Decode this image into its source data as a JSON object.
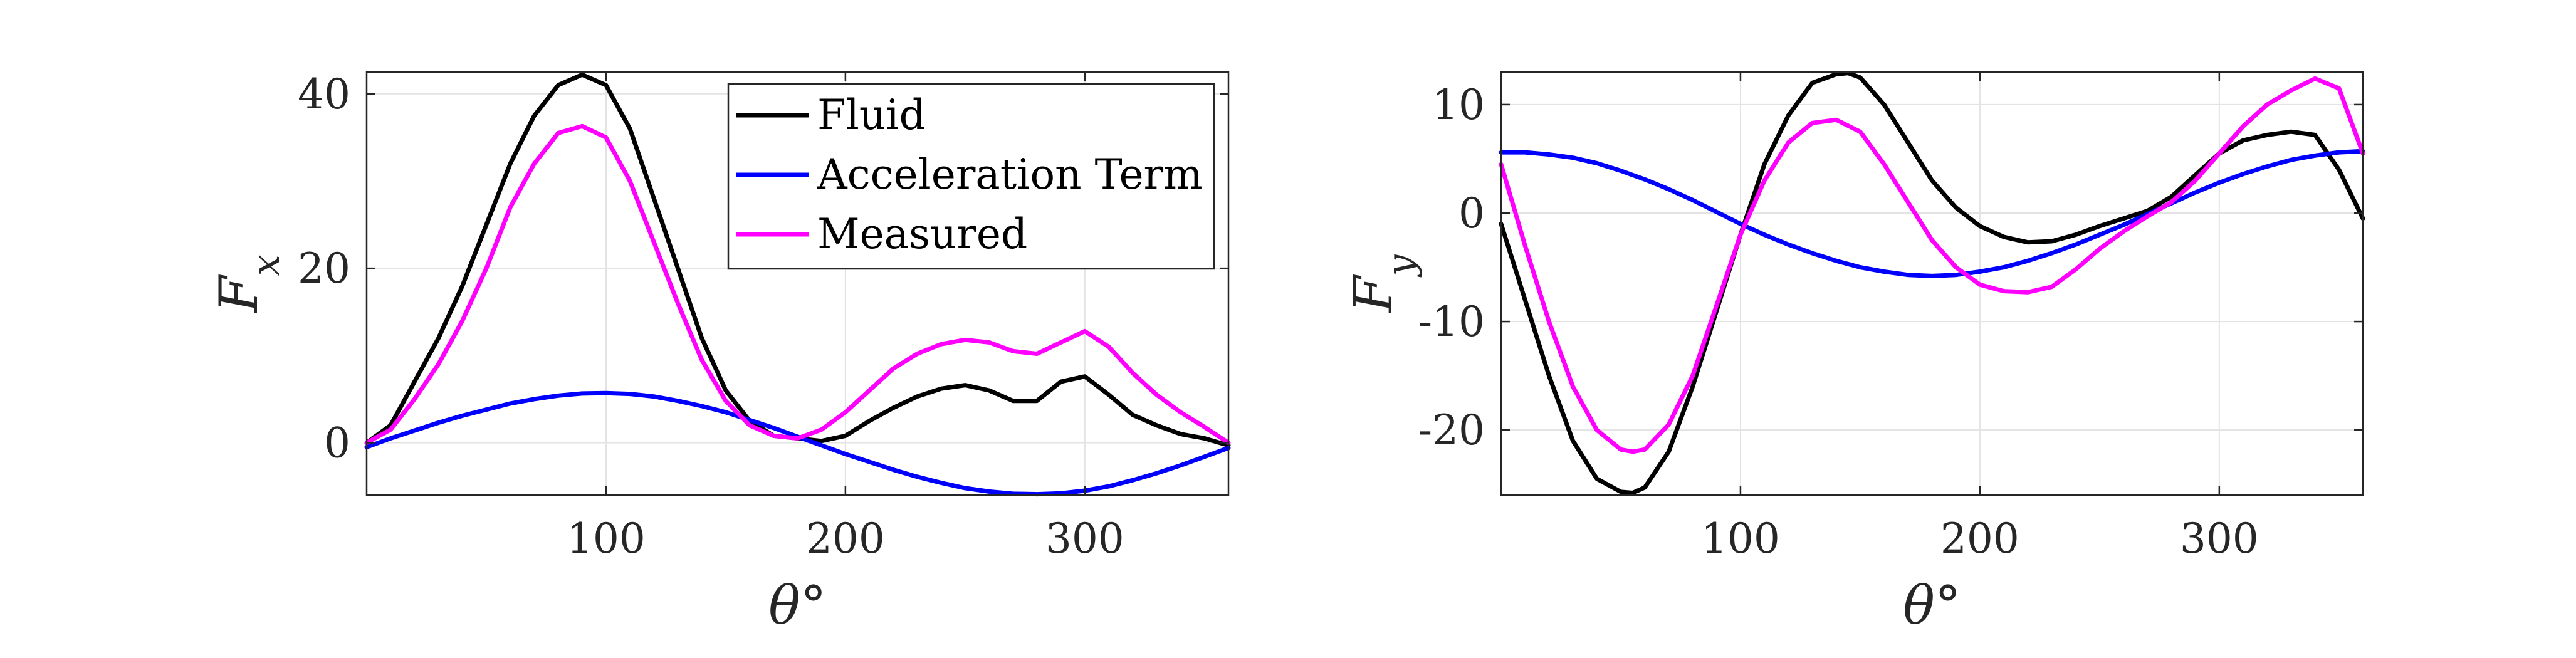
{
  "chart_data": [
    {
      "type": "line",
      "title": "",
      "xlabel": "θ°",
      "ylabel": "Fx",
      "xlim": [
        0,
        360
      ],
      "ylim": [
        -6,
        42.5
      ],
      "xticks": [
        100,
        200,
        300
      ],
      "yticks": [
        0,
        20,
        40
      ],
      "ytick_labels": [
        "0",
        "20",
        "40"
      ],
      "grid": true,
      "legend_position": "top-right",
      "series": [
        {
          "name": "Fluid",
          "color": "#000000",
          "x": [
            0,
            10,
            20,
            30,
            40,
            50,
            60,
            70,
            80,
            90,
            100,
            110,
            120,
            130,
            140,
            150,
            160,
            170,
            180,
            190,
            200,
            210,
            220,
            230,
            240,
            250,
            260,
            270,
            280,
            290,
            300,
            310,
            320,
            330,
            340,
            350,
            360
          ],
          "y": [
            0,
            2,
            7,
            12,
            18,
            25,
            32,
            37.5,
            41,
            42.2,
            41,
            36,
            28,
            20,
            12,
            6,
            2.5,
            0.8,
            0.5,
            0.2,
            0.8,
            2.5,
            4,
            5.3,
            6.2,
            6.6,
            6,
            4.8,
            4.8,
            7,
            7.6,
            5.5,
            3.2,
            2,
            1,
            0.5,
            -0.3
          ]
        },
        {
          "name": "Acceleration Term",
          "color": "#0000ff",
          "x": [
            0,
            10,
            20,
            30,
            40,
            50,
            60,
            70,
            80,
            90,
            100,
            110,
            120,
            130,
            140,
            150,
            160,
            170,
            180,
            190,
            200,
            210,
            220,
            230,
            240,
            250,
            260,
            270,
            280,
            290,
            300,
            310,
            320,
            330,
            340,
            350,
            360
          ],
          "y": [
            -0.5,
            0.5,
            1.4,
            2.3,
            3.1,
            3.8,
            4.5,
            5,
            5.4,
            5.65,
            5.7,
            5.6,
            5.3,
            4.8,
            4.2,
            3.5,
            2.6,
            1.7,
            0.7,
            -0.3,
            -1.3,
            -2.2,
            -3.1,
            -3.9,
            -4.6,
            -5.2,
            -5.6,
            -5.85,
            -5.9,
            -5.8,
            -5.5,
            -5,
            -4.3,
            -3.5,
            -2.6,
            -1.6,
            -0.6
          ]
        },
        {
          "name": "Measured",
          "color": "#ff00ff",
          "x": [
            0,
            10,
            20,
            30,
            40,
            50,
            60,
            70,
            80,
            90,
            100,
            110,
            120,
            130,
            140,
            150,
            160,
            170,
            180,
            190,
            200,
            210,
            220,
            230,
            240,
            250,
            260,
            270,
            280,
            290,
            300,
            310,
            320,
            330,
            340,
            350,
            360
          ],
          "y": [
            0,
            1.5,
            5,
            9,
            14,
            20,
            27,
            32,
            35.5,
            36.3,
            35,
            30,
            23,
            16,
            9.5,
            4.8,
            2,
            0.8,
            0.5,
            1.5,
            3.5,
            6,
            8.5,
            10.2,
            11.3,
            11.8,
            11.5,
            10.5,
            10.2,
            11.5,
            12.8,
            11,
            8,
            5.5,
            3.5,
            1.8,
            0
          ]
        }
      ]
    },
    {
      "type": "line",
      "title": "",
      "xlabel": "θ°",
      "ylabel": "Fy",
      "xlim": [
        0,
        360
      ],
      "ylim": [
        -26,
        13
      ],
      "xticks": [
        100,
        200,
        300
      ],
      "yticks": [
        -20,
        -10,
        0,
        10
      ],
      "ytick_labels": [
        "-20",
        "-10",
        "0",
        "10"
      ],
      "grid": true,
      "series": [
        {
          "name": "Fluid",
          "color": "#000000",
          "x": [
            0,
            10,
            20,
            30,
            40,
            50,
            55,
            60,
            70,
            80,
            90,
            100,
            110,
            120,
            130,
            140,
            145,
            150,
            160,
            170,
            180,
            190,
            200,
            210,
            220,
            230,
            240,
            250,
            260,
            270,
            280,
            290,
            300,
            310,
            320,
            330,
            340,
            350,
            360
          ],
          "y": [
            -1,
            -8,
            -15,
            -21,
            -24.5,
            -25.7,
            -25.8,
            -25.3,
            -22,
            -16,
            -9,
            -2,
            4.5,
            9,
            12,
            12.8,
            12.9,
            12.5,
            10,
            6.5,
            3,
            0.5,
            -1.2,
            -2.2,
            -2.7,
            -2.6,
            -2,
            -1.2,
            -0.5,
            0.2,
            1.5,
            3.5,
            5.5,
            6.7,
            7.2,
            7.5,
            7.2,
            4,
            -0.5
          ]
        },
        {
          "name": "Acceleration Term",
          "color": "#0000ff",
          "x": [
            0,
            10,
            20,
            30,
            40,
            50,
            60,
            70,
            80,
            90,
            100,
            110,
            120,
            130,
            140,
            150,
            160,
            170,
            180,
            190,
            200,
            210,
            220,
            230,
            240,
            250,
            260,
            270,
            280,
            290,
            300,
            310,
            320,
            330,
            340,
            350,
            360
          ],
          "y": [
            5.6,
            5.6,
            5.4,
            5.1,
            4.6,
            3.9,
            3.1,
            2.2,
            1.2,
            0.1,
            -1,
            -2,
            -2.9,
            -3.7,
            -4.4,
            -5,
            -5.4,
            -5.7,
            -5.8,
            -5.7,
            -5.4,
            -5,
            -4.4,
            -3.7,
            -2.9,
            -2,
            -1.1,
            -0.1,
            0.9,
            1.9,
            2.8,
            3.6,
            4.3,
            4.9,
            5.3,
            5.6,
            5.7
          ]
        },
        {
          "name": "Measured",
          "color": "#ff00ff",
          "x": [
            0,
            10,
            20,
            30,
            40,
            50,
            55,
            60,
            70,
            80,
            90,
            100,
            110,
            120,
            130,
            140,
            150,
            160,
            170,
            180,
            190,
            200,
            210,
            220,
            230,
            240,
            250,
            260,
            270,
            280,
            290,
            300,
            310,
            320,
            330,
            340,
            350,
            360
          ],
          "y": [
            4.5,
            -3,
            -10,
            -16,
            -20,
            -21.8,
            -22,
            -21.8,
            -19.5,
            -15,
            -8.5,
            -2,
            3,
            6.5,
            8.3,
            8.6,
            7.5,
            4.5,
            1,
            -2.5,
            -5,
            -6.6,
            -7.2,
            -7.3,
            -6.8,
            -5.2,
            -3.3,
            -1.7,
            -0.3,
            1,
            3,
            5.5,
            8,
            10,
            11.3,
            12.4,
            11.5,
            5.5
          ]
        }
      ]
    }
  ]
}
